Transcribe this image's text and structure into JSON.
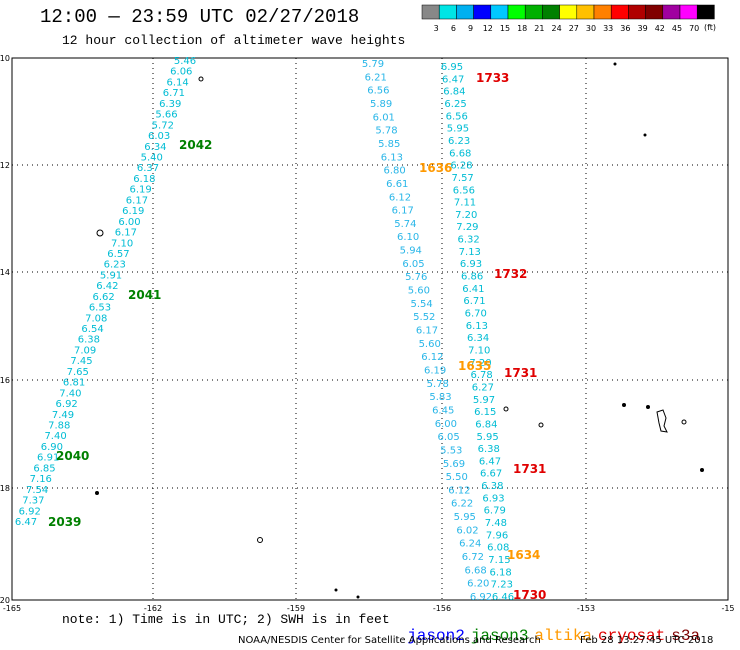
{
  "header": {
    "title": "12:00 — 23:59 UTC 02/27/2018",
    "subtitle": "12 hour collection of altimeter wave heights"
  },
  "colorbar": {
    "unit": "(ft)",
    "labels": [
      "3",
      "6",
      "9",
      "12",
      "15",
      "18",
      "21",
      "24",
      "27",
      "30",
      "33",
      "36",
      "39",
      "42",
      "45",
      "70"
    ],
    "colors": [
      "#888888",
      "#00e5e5",
      "#00b0f0",
      "#0000ff",
      "#00c8ff",
      "#00ff00",
      "#00b000",
      "#008000",
      "#ffff00",
      "#ffc000",
      "#ff8000",
      "#ff0000",
      "#b00000",
      "#800000",
      "#a000a0",
      "#ff00ff",
      "#000000"
    ]
  },
  "axes": {
    "lat_labels": [
      "-10",
      "-12",
      "-14",
      "-16",
      "-18",
      "-20"
    ],
    "lon_labels": [
      "-165",
      "-162",
      "-159",
      "-156",
      "-153",
      "-15"
    ]
  },
  "tracks": {
    "jason3_a": {
      "color": "#00bcd4",
      "values": [
        "5.46",
        "6.06",
        "6.14",
        "6.71",
        "6.39",
        "5.66",
        "5.72",
        "6.03",
        "6.34",
        "5.40",
        "6.37",
        "6.18",
        "6.19",
        "6.17",
        "6.19",
        "6.00",
        "6.17",
        "7.10",
        "6.57",
        "6.23",
        "5.91",
        "6.42",
        "6.62",
        "6.53",
        "7.08",
        "6.54",
        "6.38",
        "7.09",
        "7.45",
        "7.65",
        "6.81",
        "7.40",
        "6.92",
        "7.49",
        "7.88",
        "7.40",
        "6.90",
        "6.91",
        "6.85",
        "7.16",
        "7.54",
        "7.37",
        "6.92",
        "6.47"
      ]
    },
    "altika_a": {
      "color": "#29b6e8",
      "values": [
        "5.79",
        "6.21",
        "6.56",
        "5.89",
        "6.01",
        "5.78",
        "5.85",
        "6.13",
        "6.80",
        "6.61",
        "6.12",
        "6.17",
        "5.74",
        "6.10",
        "5.94",
        "6.05",
        "5.76",
        "5.60",
        "5.54",
        "5.52",
        "6.17",
        "5.60",
        "6.12",
        "6.19",
        "5.78",
        "5.83",
        "6.45",
        "6.00",
        "6.05",
        "5.53",
        "5.69",
        "5.50",
        "6.12",
        "6.22",
        "5.95",
        "6.02",
        "6.24",
        "6.72",
        "6.68",
        "6.20",
        "6.92"
      ]
    },
    "jason3_b": {
      "color": "#00bcd4",
      "values": [
        "6.95",
        "6.47",
        "6.84",
        "6.25",
        "6.56",
        "5.95",
        "6.23",
        "6.68",
        "6.28",
        "7.57",
        "6.56",
        "7.11",
        "7.20",
        "7.29",
        "6.32",
        "7.13",
        "6.93",
        "6.86",
        "6.41",
        "6.71",
        "6.70",
        "6.13",
        "6.34",
        "7.10",
        "7.20",
        "6.78",
        "6.27",
        "5.97",
        "6.15",
        "6.84",
        "5.95",
        "6.38",
        "6.47",
        "6.67",
        "6.38",
        "6.93",
        "6.79",
        "7.48",
        "7.96",
        "6.08",
        "7.15",
        "6.18",
        "7.23",
        "6.46"
      ]
    }
  },
  "times": [
    {
      "label": "1733",
      "color": "#e00000"
    },
    {
      "label": "2042",
      "color": "#008000"
    },
    {
      "label": "1636",
      "color": "#ff9900"
    },
    {
      "label": "2041",
      "color": "#008000"
    },
    {
      "label": "1732",
      "color": "#e00000"
    },
    {
      "label": "1635",
      "color": "#ff9900"
    },
    {
      "label": "1731",
      "color": "#e00000"
    },
    {
      "label": "2040",
      "color": "#008000"
    },
    {
      "label": "1731",
      "color": "#e00000"
    },
    {
      "label": "2039",
      "color": "#008000"
    },
    {
      "label": "1634",
      "color": "#ff9900"
    },
    {
      "label": "1730",
      "color": "#e00000"
    }
  ],
  "footer": {
    "note": "note: 1) Time is in UTC; 2) SWH is in feet",
    "legend": [
      {
        "label": "jason2",
        "color": "#0000ff"
      },
      {
        "label": "jason3",
        "color": "#008000"
      },
      {
        "label": "altika",
        "color": "#ff9900"
      },
      {
        "label": "cryosat",
        "color": "#e00000"
      },
      {
        "label": "s3a",
        "color": "#800000"
      }
    ],
    "credit": "NOAA/NESDIS Center for Satellite Applications and Research",
    "stamp": "Feb 28 13:27:45 UTC 2018"
  }
}
